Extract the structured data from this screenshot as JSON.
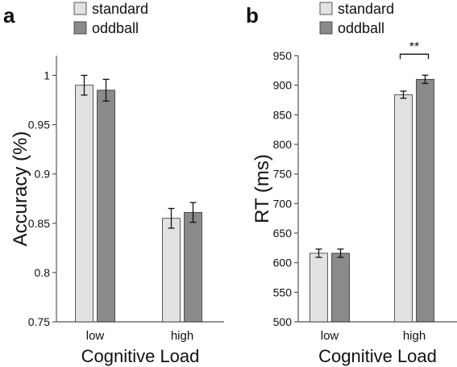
{
  "colors": {
    "standard": "#e2e2e2",
    "oddball": "#8a8a8a",
    "axis": "#555555",
    "outline": "#333333"
  },
  "chart_data": [
    {
      "type": "bar",
      "panel_label": "a",
      "categories": [
        "low",
        "high"
      ],
      "series": [
        {
          "name": "standard",
          "values": [
            0.99,
            0.855
          ],
          "errors": [
            0.01,
            0.01
          ]
        },
        {
          "name": "oddball",
          "values": [
            0.985,
            0.861
          ],
          "errors": [
            0.011,
            0.01
          ]
        }
      ],
      "xlabel": "Cognitive Load",
      "ylabel": "Accuracy (%)",
      "ylim": [
        0.75,
        1.02
      ],
      "yticks": [
        "0.75",
        "0.8",
        "0.85",
        "0.9",
        "0.95",
        "1"
      ],
      "legend": "top",
      "annotations": []
    },
    {
      "type": "bar",
      "panel_label": "b",
      "categories": [
        "low",
        "high"
      ],
      "series": [
        {
          "name": "standard",
          "values": [
            616,
            884
          ],
          "errors": [
            7,
            6
          ]
        },
        {
          "name": "oddball",
          "values": [
            616,
            910
          ],
          "errors": [
            7,
            7
          ]
        }
      ],
      "xlabel": "Cognitive Load",
      "ylabel": "RT (ms)",
      "ylim": [
        500,
        950
      ],
      "yticks": [
        "500",
        "550",
        "600",
        "650",
        "700",
        "750",
        "800",
        "850",
        "900",
        "950"
      ],
      "legend": "top",
      "annotations": [
        {
          "category": "high",
          "text": "**"
        }
      ]
    }
  ]
}
